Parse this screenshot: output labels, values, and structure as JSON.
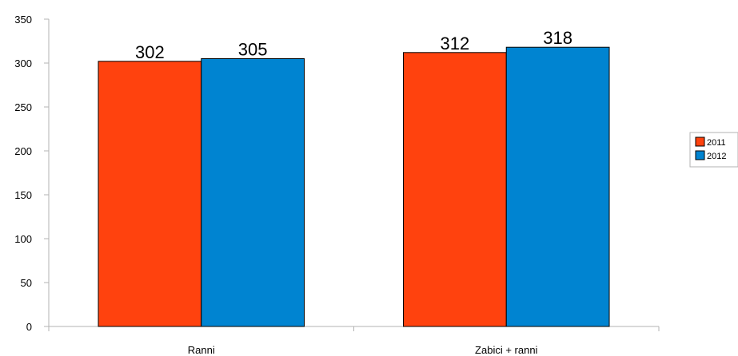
{
  "chart_data": {
    "type": "bar",
    "categories": [
      "Ranni",
      "Zabici + ranni"
    ],
    "series": [
      {
        "name": "2011",
        "values": [
          302,
          312
        ],
        "color": "#ff420e"
      },
      {
        "name": "2012",
        "values": [
          305,
          318
        ],
        "color": "#0084d1"
      }
    ],
    "title": "",
    "xlabel": "",
    "ylabel": "",
    "ylim": [
      0,
      350
    ],
    "yticks": [
      "0",
      "50",
      "100",
      "150",
      "200",
      "250",
      "300",
      "350"
    ],
    "grid": false,
    "legend_position": "right"
  }
}
